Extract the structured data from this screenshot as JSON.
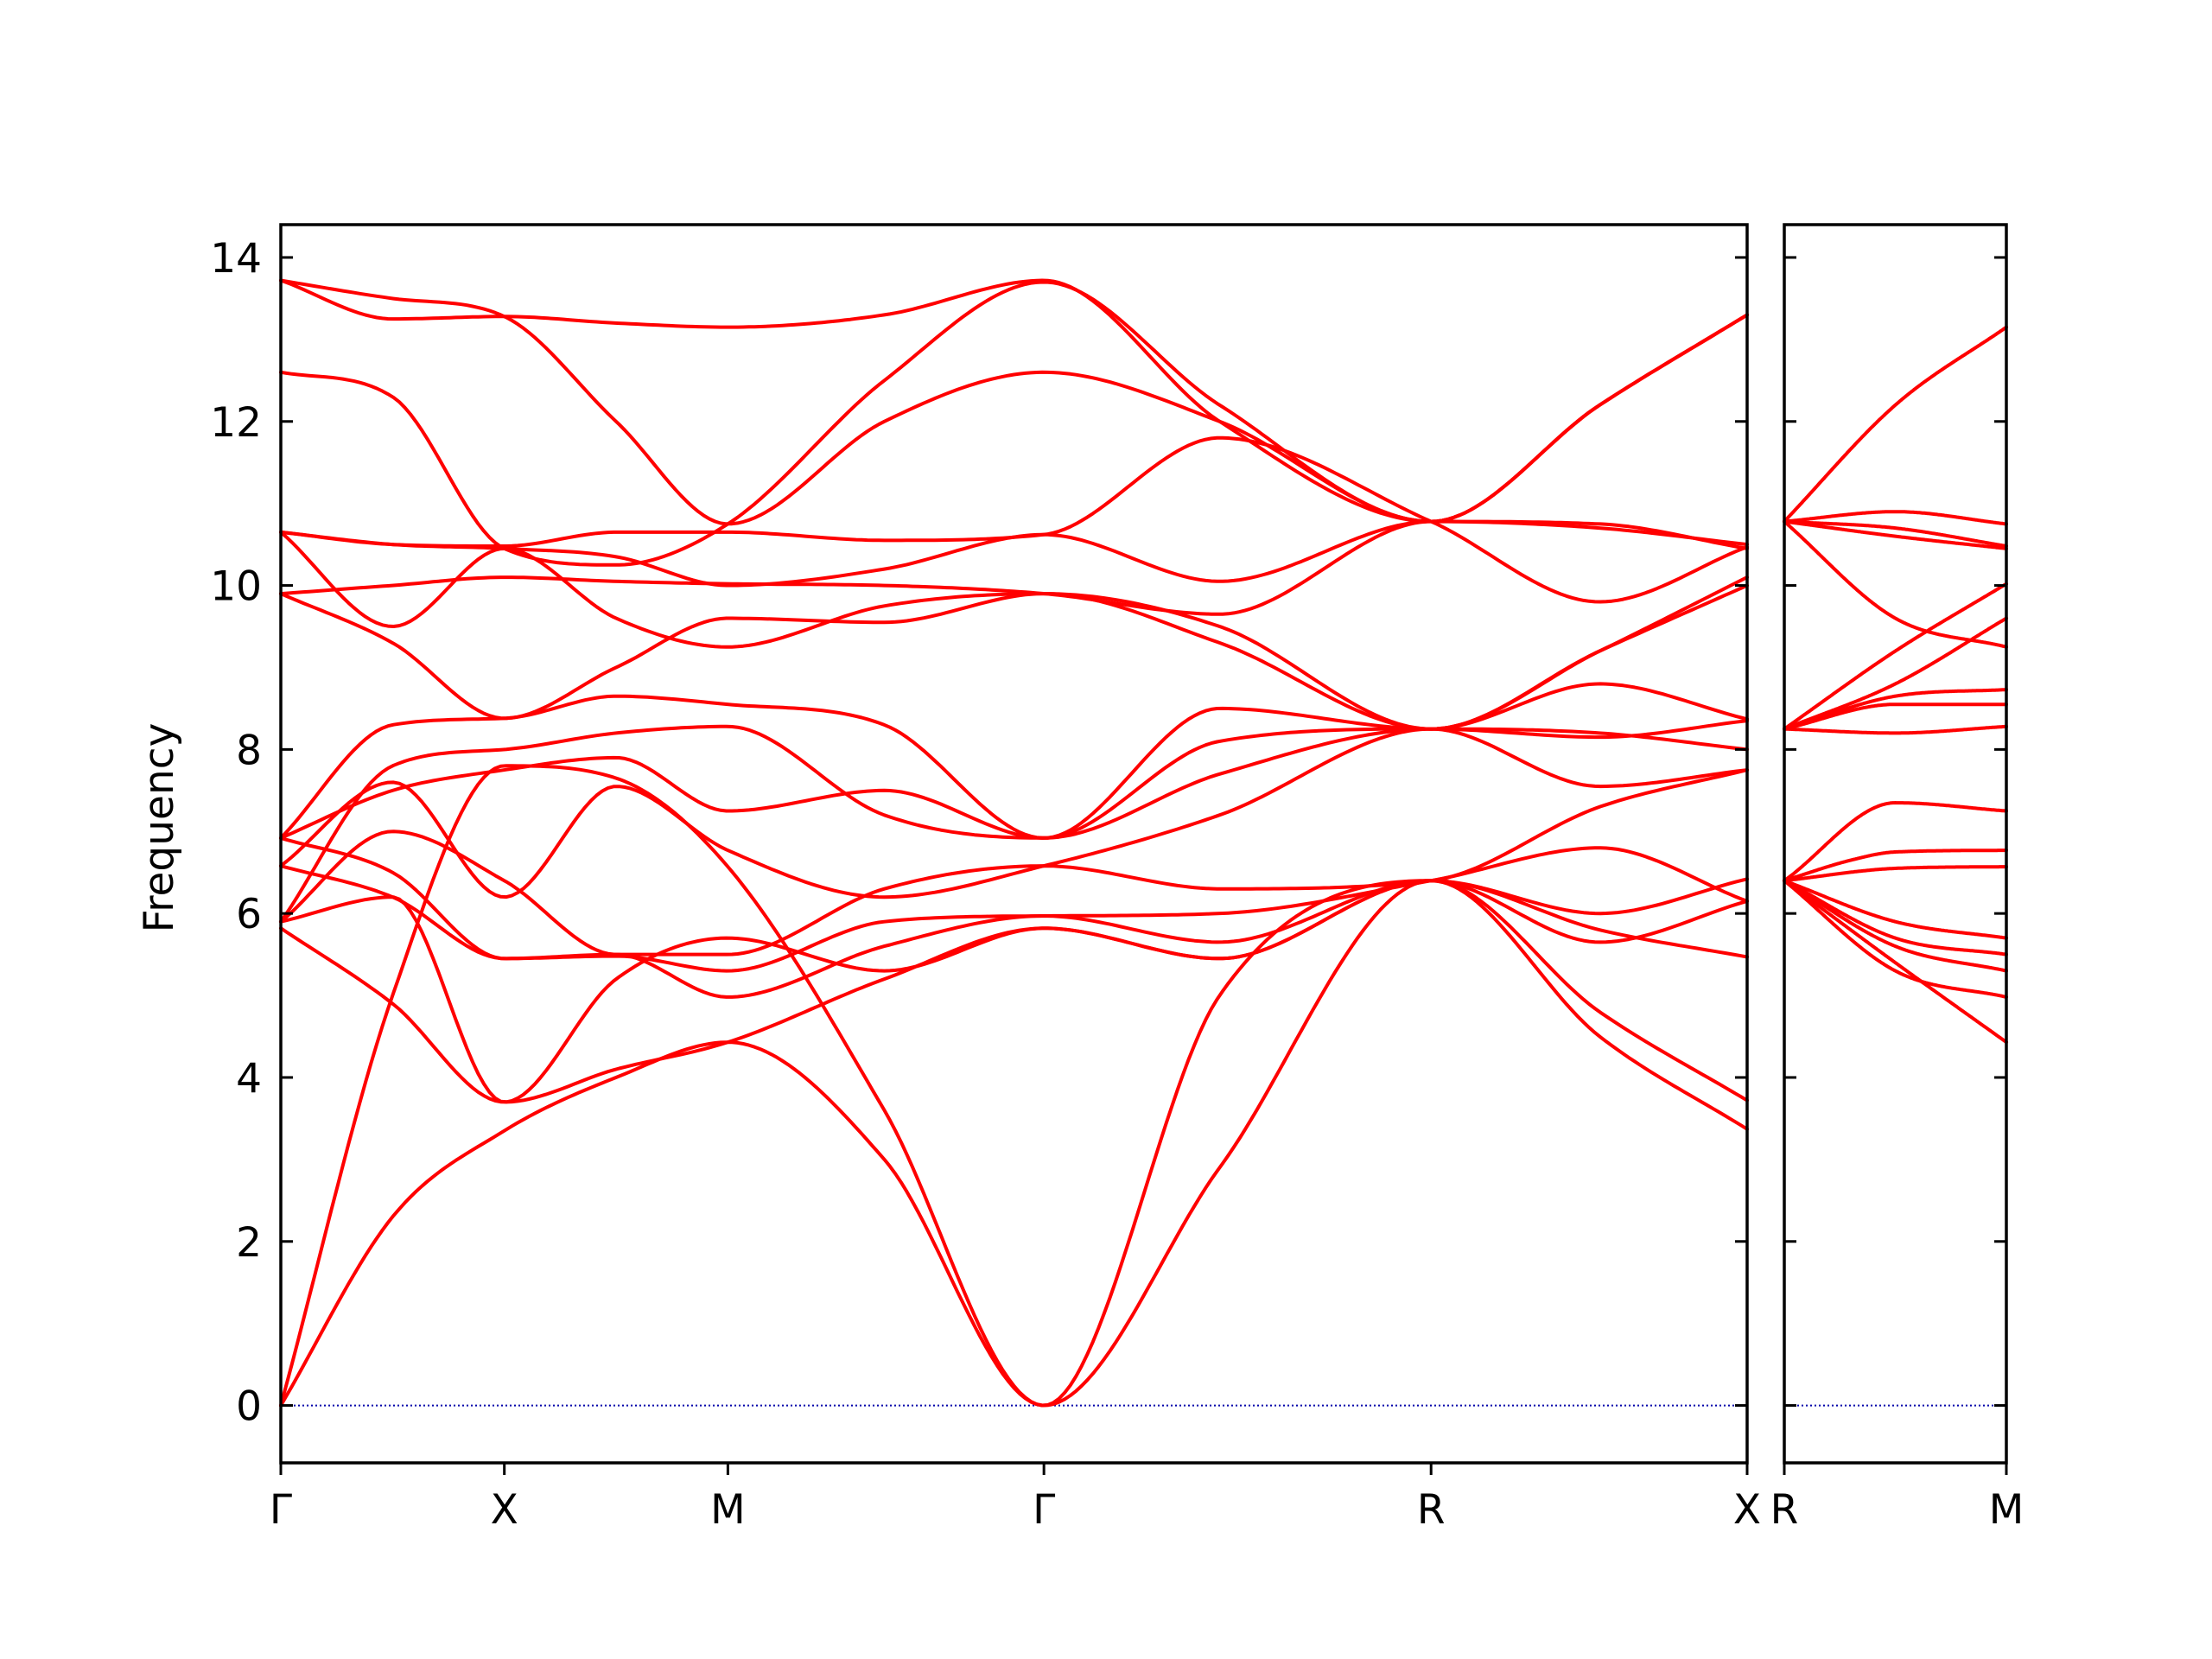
{
  "chart_data": {
    "type": "line",
    "ylabel": "Frequency",
    "ylim": [
      -0.7,
      14.4
    ],
    "yticks": [
      0,
      2,
      4,
      6,
      8,
      10,
      12,
      14
    ],
    "grid": false,
    "colors": {
      "bands": "#ff0000",
      "zero_line": "#0000aa",
      "axes": "#000000"
    },
    "panels": [
      {
        "segments": [
          {
            "from": "Γ",
            "to": "X",
            "x": [
              0,
              1
            ]
          },
          {
            "from": "X",
            "to": "M",
            "x": [
              1,
              2
            ]
          },
          {
            "from": "M",
            "to": "Γ",
            "x": [
              2,
              3.414
            ]
          },
          {
            "from": "Γ",
            "to": "R",
            "x": [
              3.414,
              5.146
            ]
          },
          {
            "from": "R",
            "to": "X",
            "x": [
              5.146,
              6.56
            ]
          }
        ],
        "xticks": [
          {
            "x": 0,
            "label": "Γ"
          },
          {
            "x": 1,
            "label": "X"
          },
          {
            "x": 2,
            "label": "M"
          },
          {
            "x": 3.414,
            "label": "Γ"
          },
          {
            "x": 5.146,
            "label": "R"
          },
          {
            "x": 6.56,
            "label": "X"
          }
        ],
        "xlim": [
          0,
          6.56
        ],
        "bands": [
          {
            "x": [
              0,
              0.5,
              1,
              1.5,
              2,
              2.7,
              3.414,
              4.2,
              5.146,
              5.9,
              6.56
            ],
            "y": [
              0,
              2.3,
              3.35,
              4.0,
              4.43,
              3.0,
              0,
              2.9,
              6.4,
              4.5,
              3.37
            ]
          },
          {
            "x": [
              0,
              0.5,
              1,
              1.5,
              2,
              2.7,
              3.414,
              4.2,
              5.146,
              5.9,
              6.56
            ],
            "y": [
              0,
              5.0,
              7.8,
              7.65,
              6.57,
              3.6,
              0,
              5.0,
              6.4,
              4.8,
              3.72
            ]
          },
          {
            "x": [
              0,
              0.5,
              1,
              1.5,
              2,
              2.7,
              3.414,
              4.2,
              5.146,
              5.9,
              6.56
            ],
            "y": [
              5.82,
              4.9,
              3.7,
              4.1,
              4.43,
              5.2,
              5.82,
              5.45,
              6.4,
              5.8,
              5.47
            ]
          },
          {
            "x": [
              0,
              0.5,
              1,
              1.5,
              2,
              2.7,
              3.414,
              4.2,
              5.146,
              5.9,
              6.56
            ],
            "y": [
              5.9,
              6.2,
              3.7,
              5.2,
              5.7,
              5.3,
              5.82,
              5.45,
              6.4,
              5.65,
              6.15
            ]
          },
          {
            "x": [
              0,
              0.5,
              1,
              1.5,
              2,
              2.7,
              3.414,
              4.2,
              5.146,
              5.9,
              6.56
            ],
            "y": [
              6.58,
              6.2,
              5.45,
              5.5,
              4.98,
              5.6,
              5.97,
              5.65,
              6.4,
              6.0,
              6.42
            ]
          },
          {
            "x": [
              0,
              0.5,
              1,
              1.5,
              2,
              2.7,
              3.414,
              4.2,
              5.146,
              5.9,
              6.56
            ],
            "y": [
              6.92,
              6.5,
              5.45,
              5.48,
              5.3,
              5.9,
              5.97,
              6.0,
              6.4,
              6.8,
              6.15
            ]
          },
          {
            "x": [
              0,
              0.5,
              1,
              1.5,
              2,
              2.7,
              3.414,
              4.2,
              5.146,
              5.9,
              6.56
            ],
            "y": [
              5.9,
              7.0,
              6.4,
              5.5,
              5.5,
              6.3,
              6.58,
              6.3,
              6.4,
              7.3,
              7.75
            ]
          },
          {
            "x": [
              0,
              0.5,
              1,
              1.5,
              2,
              2.7,
              3.414,
              4.2,
              5.146,
              5.9,
              6.56
            ],
            "y": [
              6.58,
              7.6,
              6.2,
              7.55,
              6.77,
              6.2,
              6.58,
              7.2,
              8.25,
              7.55,
              7.75
            ]
          },
          {
            "x": [
              0,
              0.5,
              1,
              1.5,
              2,
              2.7,
              3.414,
              4.2,
              5.146,
              5.9,
              6.56
            ],
            "y": [
              6.92,
              7.5,
              7.75,
              7.9,
              7.25,
              7.5,
              6.92,
              7.7,
              8.25,
              8.2,
              8.0
            ]
          },
          {
            "x": [
              0,
              0.5,
              1,
              1.5,
              2,
              2.7,
              3.414,
              4.2,
              5.146,
              5.9,
              6.56
            ],
            "y": [
              5.9,
              7.8,
              8.0,
              8.2,
              8.28,
              7.2,
              6.92,
              8.1,
              8.25,
              8.15,
              8.35
            ]
          },
          {
            "x": [
              0,
              0.5,
              1,
              1.5,
              2,
              2.7,
              3.414,
              4.2,
              5.146,
              5.9,
              6.56
            ],
            "y": [
              6.92,
              8.3,
              8.38,
              8.65,
              8.55,
              8.3,
              6.92,
              8.5,
              8.25,
              8.8,
              8.37
            ]
          },
          {
            "x": [
              0,
              0.5,
              1,
              1.5,
              2,
              2.7,
              3.414,
              4.2,
              5.146,
              5.9,
              6.56
            ],
            "y": [
              9.9,
              9.3,
              8.38,
              9.0,
              9.6,
              9.55,
              9.9,
              9.3,
              8.25,
              9.2,
              10.0
            ]
          },
          {
            "x": [
              0,
              0.5,
              1,
              1.5,
              2,
              2.7,
              3.414,
              4.2,
              5.146,
              5.9,
              6.56
            ],
            "y": [
              10.65,
              9.5,
              10.45,
              9.6,
              9.25,
              9.75,
              9.9,
              9.5,
              8.25,
              9.2,
              10.1
            ]
          },
          {
            "x": [
              0,
              0.5,
              1,
              1.5,
              2,
              2.7,
              3.414,
              4.2,
              5.146,
              5.9,
              6.56
            ],
            "y": [
              9.9,
              10.0,
              10.1,
              10.05,
              10.02,
              10.0,
              9.9,
              9.65,
              10.78,
              10.75,
              10.45
            ]
          },
          {
            "x": [
              0,
              0.5,
              1,
              1.5,
              2,
              2.7,
              3.414,
              4.2,
              5.146,
              5.9,
              6.56
            ],
            "y": [
              10.65,
              10.5,
              10.45,
              10.35,
              10.0,
              10.2,
              10.62,
              10.05,
              10.78,
              10.7,
              10.5
            ]
          },
          {
            "x": [
              0,
              0.5,
              1,
              1.5,
              2,
              2.7,
              3.414,
              4.2,
              5.146,
              5.9,
              6.56
            ],
            "y": [
              10.65,
              10.5,
              10.48,
              10.65,
              10.65,
              10.55,
              10.62,
              11.8,
              10.78,
              9.8,
              10.47
            ]
          },
          {
            "x": [
              0,
              0.5,
              1,
              1.5,
              2,
              2.7,
              3.414,
              4.2,
              5.146,
              5.9,
              6.56
            ],
            "y": [
              12.6,
              12.3,
              10.45,
              10.25,
              10.75,
              12.5,
              13.7,
              12.2,
              10.78,
              12.2,
              13.3
            ]
          },
          {
            "x": [
              0,
              0.5,
              1,
              1.5,
              2,
              2.7,
              3.414,
              4.2,
              5.146,
              5.9,
              6.56
            ],
            "y": [
              13.72,
              13.25,
              13.28,
              13.2,
              13.15,
              13.3,
              13.72,
              12.0,
              10.78,
              12.2,
              13.3
            ]
          },
          {
            "x": [
              0,
              0.5,
              1,
              1.5,
              2,
              2.7,
              3.414,
              4.2,
              5.146,
              5.9,
              6.56
            ],
            "y": [
              13.72,
              13.5,
              13.28,
              12.0,
              10.75,
              12.0,
              12.6,
              12.0,
              10.78,
              12.2,
              13.3
            ]
          }
        ]
      },
      {
        "segments": [
          {
            "from": "R",
            "to": "M",
            "x": [
              0,
              1
            ]
          }
        ],
        "xticks": [
          {
            "x": 0,
            "label": "R"
          },
          {
            "x": 1,
            "label": "M"
          }
        ],
        "xlim": [
          0,
          1
        ],
        "bands": [
          {
            "x": [
              0,
              0.5,
              1
            ],
            "y": [
              6.4,
              5.4,
              4.43
            ]
          },
          {
            "x": [
              0,
              0.5,
              1
            ],
            "y": [
              6.4,
              5.3,
              4.98
            ]
          },
          {
            "x": [
              0,
              0.5,
              1
            ],
            "y": [
              6.4,
              5.6,
              5.3
            ]
          },
          {
            "x": [
              0,
              0.5,
              1
            ],
            "y": [
              6.4,
              5.7,
              5.5
            ]
          },
          {
            "x": [
              0,
              0.5,
              1
            ],
            "y": [
              6.4,
              5.9,
              5.7
            ]
          },
          {
            "x": [
              0,
              0.5,
              1
            ],
            "y": [
              6.4,
              6.55,
              6.57
            ]
          },
          {
            "x": [
              0,
              0.3,
              0.5,
              1
            ],
            "y": [
              6.4,
              6.65,
              6.75,
              6.77
            ]
          },
          {
            "x": [
              0,
              0.5,
              1
            ],
            "y": [
              6.4,
              7.35,
              7.25
            ]
          },
          {
            "x": [
              0,
              0.5,
              1
            ],
            "y": [
              8.25,
              8.2,
              8.28
            ]
          },
          {
            "x": [
              0,
              0.5,
              1
            ],
            "y": [
              8.25,
              8.55,
              8.55
            ]
          },
          {
            "x": [
              0,
              0.5,
              1
            ],
            "y": [
              8.25,
              8.65,
              8.73
            ]
          },
          {
            "x": [
              0,
              0.5,
              1
            ],
            "y": [
              8.25,
              8.8,
              9.6
            ]
          },
          {
            "x": [
              0,
              0.5,
              1
            ],
            "y": [
              8.25,
              9.2,
              10.02
            ]
          },
          {
            "x": [
              0,
              0.5,
              1
            ],
            "y": [
              10.78,
              9.6,
              9.25
            ]
          },
          {
            "x": [
              0,
              0.5,
              1
            ],
            "y": [
              10.78,
              10.6,
              10.45
            ]
          },
          {
            "x": [
              0,
              0.5,
              1
            ],
            "y": [
              10.78,
              10.7,
              10.48
            ]
          },
          {
            "x": [
              0,
              0.5,
              1
            ],
            "y": [
              10.78,
              10.9,
              10.75
            ]
          },
          {
            "x": [
              0,
              0.5,
              1
            ],
            "y": [
              10.78,
              12.2,
              13.15
            ]
          }
        ]
      }
    ]
  }
}
